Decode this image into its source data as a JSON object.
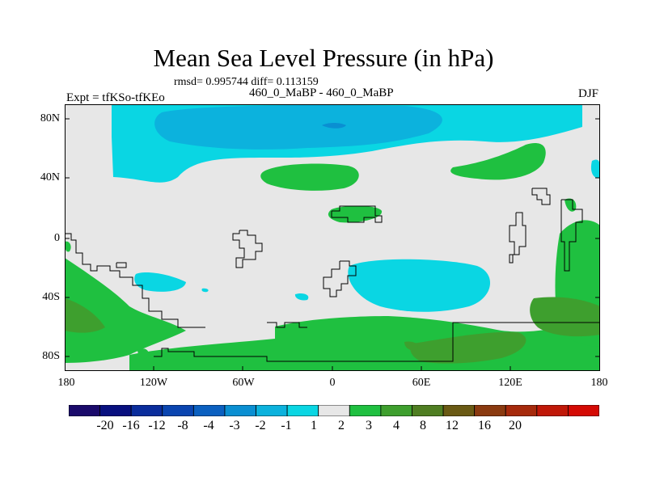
{
  "title": "Mean Sea Level Pressure (in hPa)",
  "stats": "rmsd= 0.995744 diff= 0.113159",
  "subtitle": "460_0_MaBP - 460_0_MaBP",
  "expt": "Expt = tfKSo-tfKEo",
  "season": "DJF",
  "lat_labels": [
    "80N",
    "40N",
    "0",
    "40S",
    "80S"
  ],
  "lon_labels": [
    "180",
    "120W",
    "60W",
    "0",
    "60E",
    "120E",
    "180"
  ],
  "colorbar": {
    "labels": [
      "-20",
      "-16",
      "-12",
      "-8",
      "-4",
      "-3",
      "-2",
      "-1",
      "1",
      "2",
      "3",
      "4",
      "8",
      "12",
      "16",
      "20"
    ],
    "colors": [
      "#1a0a6b",
      "#08107f",
      "#0a2d9c",
      "#0a45b0",
      "#0b60c0",
      "#0a8fd2",
      "#0cb2dd",
      "#0ad6e3",
      "#e7e7e7",
      "#1fc040",
      "#3e9f2e",
      "#4f7e22",
      "#6a5a14",
      "#8a3a10",
      "#a62a0c",
      "#c01808",
      "#d40a04"
    ]
  },
  "colors": {
    "neutral": "#e7e7e7",
    "neg_weak": "#0ad6e3",
    "neg_mid": "#0cb2dd",
    "neg_strong": "#0a8fd2",
    "pos_weak": "#1fc040",
    "pos_mid": "#3e9f2e",
    "pos_strong": "#4f7e22"
  }
}
